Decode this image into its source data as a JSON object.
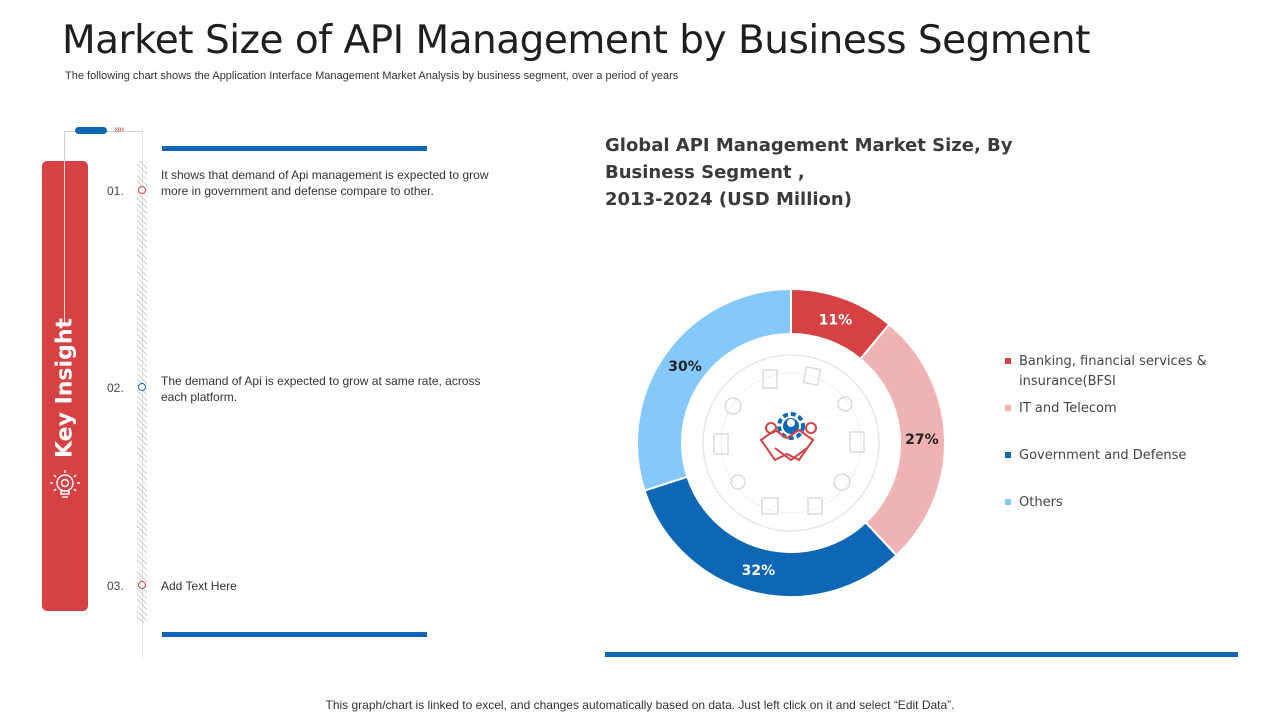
{
  "header": {
    "title": "Market Size of API Management by Business Segment",
    "subtitle": "The following chart shows the Application Interface Management Market Analysis by business segment, over a period of years"
  },
  "key_insight": {
    "label": "Key Insight",
    "steps": [
      {
        "num": "01.",
        "text": "It shows that demand of Api management  is expected to grow more in government  and defense compare to other."
      },
      {
        "num": "02.",
        "text": "The demand of Api is expected to grow at same rate, across each platform."
      },
      {
        "num": "03.",
        "text": "Add Text Here"
      }
    ]
  },
  "chart_title_lines": [
    "Global API Management Market Size, By",
    "Business Segment ,",
    "2013-2024 (USD Million)"
  ],
  "chart_data": {
    "type": "pie",
    "title": "Global API Management Market Size, By Business Segment , 2013-2024 (USD Million)",
    "categories": [
      "Banking, financial services & insurance(BFSI",
      "IT and Telecom",
      "Government and Defense",
      "Others"
    ],
    "values": [
      11,
      27,
      32,
      30
    ],
    "labels": [
      "11%",
      "27%",
      "32%",
      "30%"
    ],
    "colors": [
      "#d64244",
      "#f0b3b3",
      "#0d67b5",
      "#85c8fb"
    ],
    "legend_position": "right"
  },
  "legend": [
    {
      "line1": "Banking, financial services &",
      "line2": "insurance(BFSI"
    },
    {
      "line1": "IT and Telecom",
      "line2": ""
    },
    {
      "line1": "Government and Defense",
      "line2": ""
    },
    {
      "line1": "Others",
      "line2": ""
    }
  ],
  "footer": "This graph/chart is linked to excel, and changes automatically based on data. Just left click on it and select “Edit Data”.",
  "colors": {
    "accent_red": "#d64244",
    "accent_blue": "#0d67b5"
  }
}
